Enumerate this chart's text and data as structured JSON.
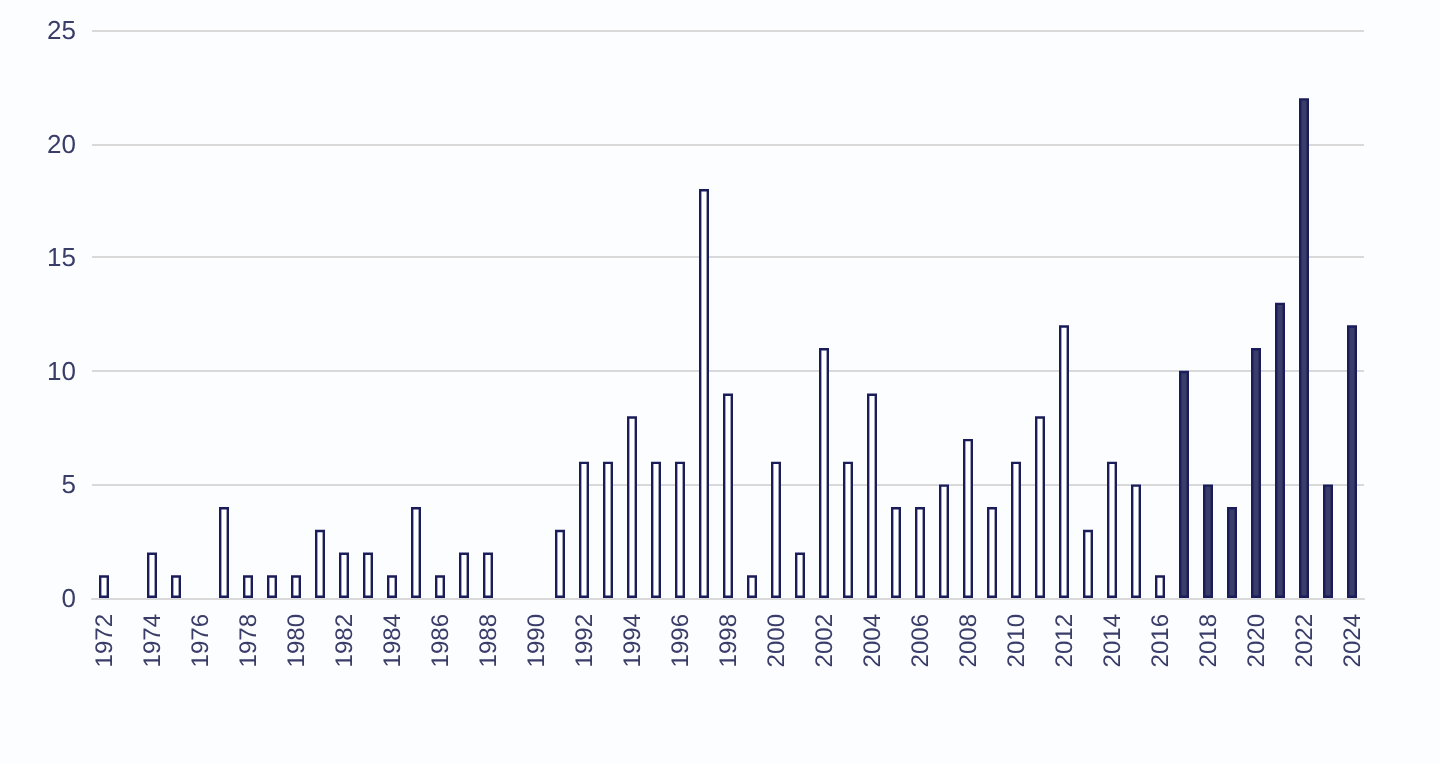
{
  "chart_data": {
    "type": "bar",
    "categories": [
      "1972",
      null,
      "1974",
      null,
      "1976",
      null,
      "1978",
      null,
      "1980",
      null,
      "1982",
      null,
      "1984",
      null,
      "1986",
      null,
      "1988",
      null,
      "1990",
      null,
      "1992",
      null,
      "1994",
      null,
      "1996",
      null,
      "1998",
      null,
      "2000",
      null,
      "2002",
      null,
      "2004",
      null,
      "2006",
      null,
      "2008",
      null,
      "2010",
      null,
      "2012",
      null,
      "2014",
      null,
      "2016",
      null,
      "2018",
      null,
      "2020",
      null,
      "2022",
      null,
      "2024"
    ],
    "series": [
      {
        "color": "#ffffff",
        "values": [
          1,
          null,
          2,
          1,
          null,
          4,
          1,
          1,
          1,
          3,
          2,
          2,
          1,
          4,
          1,
          2,
          2,
          null,
          null,
          3,
          6,
          6,
          8,
          6,
          6,
          18,
          9,
          1,
          6,
          2,
          11,
          6,
          9,
          4,
          4,
          5,
          7,
          4,
          6,
          8,
          12,
          3,
          6,
          5,
          1,
          null,
          null,
          null,
          null,
          null,
          null,
          null,
          null
        ]
      },
      {
        "color": "#3a3d68",
        "values": [
          null,
          null,
          null,
          null,
          null,
          null,
          null,
          null,
          null,
          null,
          null,
          null,
          null,
          null,
          null,
          null,
          null,
          null,
          null,
          null,
          null,
          null,
          null,
          null,
          null,
          null,
          null,
          null,
          null,
          null,
          null,
          null,
          null,
          null,
          null,
          null,
          null,
          null,
          null,
          null,
          null,
          null,
          null,
          null,
          null,
          10,
          5,
          4,
          11,
          13,
          22,
          5,
          12
        ]
      }
    ],
    "ylim": [
      0,
      25
    ],
    "yticks": [
      0,
      5,
      10,
      15,
      20,
      25
    ],
    "grid": "y"
  }
}
